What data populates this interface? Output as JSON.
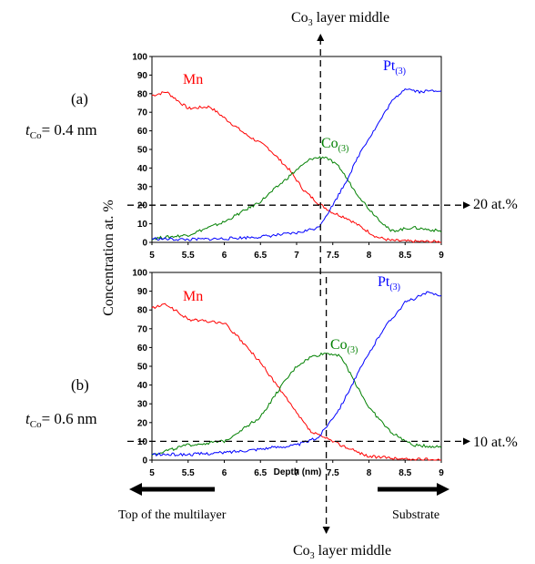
{
  "texts": {
    "co3_top_main": "Co",
    "co3_top_sub": "3",
    "co3_top_rest": " layer middle",
    "co3_bottom_main": "Co",
    "co3_bottom_sub": "3",
    "co3_bottom_rest": " layer middle",
    "panel_a": "(a)",
    "tco_a_t": "t",
    "tco_a_sub": "Co",
    "tco_a_val": "= 0.4 nm",
    "panel_b": "(b)",
    "tco_b_t": "t",
    "tco_b_sub": "Co",
    "tco_b_val": "= 0.6 nm",
    "ref_a": "20 at.%",
    "ref_b": "10 at.%",
    "ylabel": "Concentration at. %",
    "xlabel": "Depth (nm)",
    "left_arrow_label": "Top of the multilayer",
    "right_arrow_label": "Substrate",
    "lab_mn_a": "Mn",
    "lab_co_a_main": "Co",
    "lab_co_a_sub": "(3)",
    "lab_pt_a_main": "Pt",
    "lab_pt_a_sub": "(3)",
    "lab_mn_b": "Mn",
    "lab_co_b_main": "Co",
    "lab_co_b_sub": "(3)",
    "lab_pt_b_main": "Pt",
    "lab_pt_b_sub": "(3)"
  },
  "colors": {
    "Mn": "#ff0000",
    "Co": "#008000",
    "Pt": "#0000ff"
  },
  "chart_data": [
    {
      "type": "line",
      "panel": "(a)",
      "xlim": [
        5,
        9
      ],
      "ylim": [
        0,
        100
      ],
      "xticks": [
        5,
        5.5,
        6,
        6.5,
        7,
        7.5,
        8,
        8.5,
        9
      ],
      "yticks": [
        0,
        10,
        20,
        30,
        40,
        50,
        60,
        70,
        80,
        90,
        100
      ],
      "reference_line_y": 20,
      "co3_middle_x": 7.33,
      "series": [
        {
          "name": "Mn",
          "x": [
            5,
            5.2,
            5.5,
            5.8,
            6,
            6.3,
            6.6,
            6.9,
            7.1,
            7.3,
            7.5,
            7.7,
            7.9,
            8.1,
            8.3,
            8.6,
            9
          ],
          "y": [
            79,
            81,
            72,
            73,
            67,
            58,
            51,
            39,
            28,
            21,
            16,
            13,
            8,
            3,
            1,
            0.5,
            0.3
          ]
        },
        {
          "name": "Co(3)",
          "x": [
            5,
            5.5,
            6,
            6.5,
            7,
            7.2,
            7.4,
            7.6,
            7.8,
            8,
            8.3,
            8.6,
            9
          ],
          "y": [
            2,
            4,
            11,
            22,
            39,
            45,
            46,
            40,
            28,
            18,
            6,
            8,
            6
          ]
        },
        {
          "name": "Pt(3)",
          "x": [
            5,
            5.5,
            6,
            6.5,
            7,
            7.3,
            7.5,
            7.7,
            7.9,
            8.1,
            8.3,
            8.5,
            8.7,
            9
          ],
          "y": [
            2,
            1.5,
            2,
            3,
            5,
            8,
            20,
            34,
            50,
            62,
            75,
            83,
            81,
            82
          ]
        }
      ]
    },
    {
      "type": "line",
      "panel": "(b)",
      "xlim": [
        5,
        9
      ],
      "ylim": [
        0,
        100
      ],
      "xticks": [
        5,
        5.5,
        6,
        6.5,
        7,
        7.5,
        8,
        8.5,
        9
      ],
      "yticks": [
        0,
        10,
        20,
        30,
        40,
        50,
        60,
        70,
        80,
        90,
        100
      ],
      "reference_line_y": 10,
      "co3_middle_x": 7.41,
      "series": [
        {
          "name": "Mn",
          "x": [
            5,
            5.2,
            5.5,
            6,
            6.2,
            6.5,
            6.8,
            7,
            7.2,
            7.5,
            7.8,
            8,
            8.5,
            9
          ],
          "y": [
            81,
            83,
            75,
            73,
            65,
            52,
            36,
            25,
            15,
            10,
            5,
            2,
            0.5,
            0.3
          ]
        },
        {
          "name": "Co(3)",
          "x": [
            5,
            5.5,
            6,
            6.5,
            6.8,
            7,
            7.2,
            7.4,
            7.6,
            7.8,
            8,
            8.3,
            8.6,
            9
          ],
          "y": [
            3,
            8,
            10,
            23,
            40,
            50,
            55,
            57,
            56,
            42,
            28,
            15,
            8,
            7
          ]
        },
        {
          "name": "Pt(3)",
          "x": [
            5,
            5.5,
            6,
            6.5,
            7,
            7.3,
            7.6,
            7.9,
            8.2,
            8.5,
            8.8,
            9
          ],
          "y": [
            3,
            3,
            4,
            6,
            8,
            12,
            28,
            50,
            70,
            84,
            89,
            88
          ]
        }
      ]
    }
  ]
}
